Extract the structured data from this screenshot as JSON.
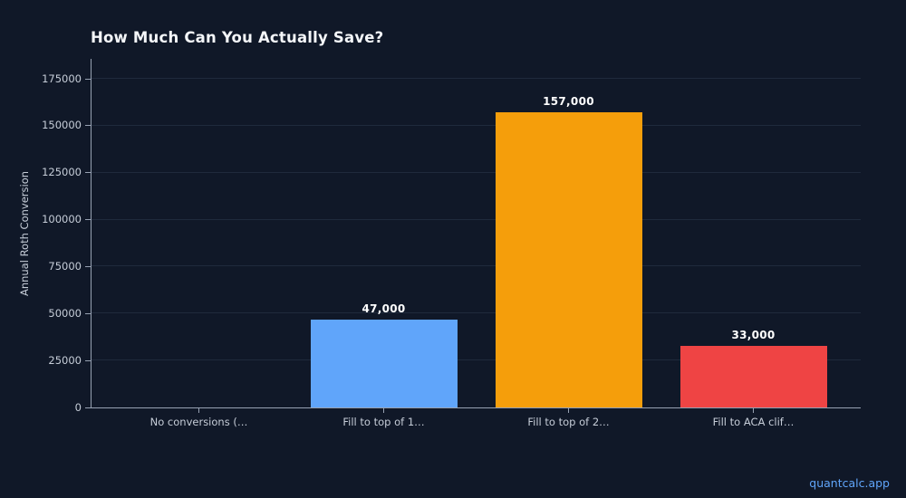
{
  "page": {
    "background_color": "#101828"
  },
  "chart_data": {
    "type": "bar",
    "title": "How Much Can You Actually Save?",
    "xlabel": "",
    "ylabel": "Annual Roth Conversion",
    "categories": [
      "No conversions (…",
      "Fill to top of 1…",
      "Fill to top of 2…",
      "Fill to ACA clif…"
    ],
    "values": [
      0,
      47000,
      157000,
      33000
    ],
    "value_labels": [
      "",
      "47,000",
      "157,000",
      "33,000"
    ],
    "bar_colors": [
      null,
      "#60a5fa",
      "#f59e0b",
      "#ef4444"
    ],
    "y_ticks": [
      0,
      25000,
      50000,
      75000,
      100000,
      125000,
      150000,
      175000
    ],
    "y_tick_labels": [
      "0",
      "25000",
      "50000",
      "75000",
      "100000",
      "125000",
      "150000",
      "175000"
    ],
    "ylim": [
      0,
      185600
    ],
    "grid": "horizontal",
    "legend": "none"
  },
  "footer": {
    "link_label": "quantcalc.app"
  },
  "colors": {
    "background": "#101828",
    "title_text": "#f4f6f9",
    "tick_text": "#c6cdd8",
    "value_label_text": "#ffffff",
    "axis_spine": "#97a1b2",
    "gridline": "#1f2a3c",
    "bar_blue": "#60a5fa",
    "bar_orange": "#f59e0b",
    "bar_red": "#ef4444",
    "footer_link": "#60a5fa"
  }
}
